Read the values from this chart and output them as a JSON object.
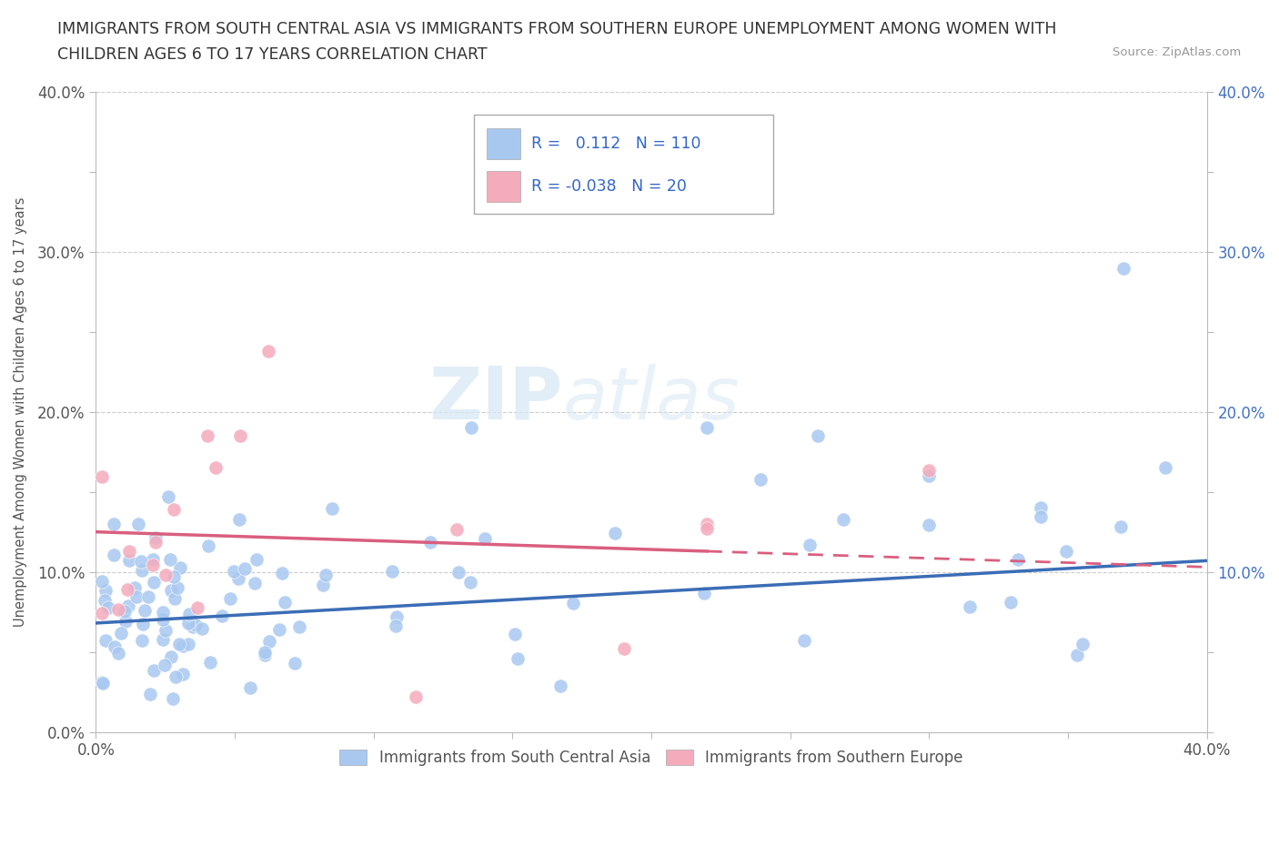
{
  "title_line1": "IMMIGRANTS FROM SOUTH CENTRAL ASIA VS IMMIGRANTS FROM SOUTHERN EUROPE UNEMPLOYMENT AMONG WOMEN WITH",
  "title_line2": "CHILDREN AGES 6 TO 17 YEARS CORRELATION CHART",
  "source_text": "Source: ZipAtlas.com",
  "ylabel": "Unemployment Among Women with Children Ages 6 to 17 years",
  "xlim": [
    0.0,
    0.4
  ],
  "ylim": [
    0.0,
    0.4
  ],
  "blue_color": "#A8C8F0",
  "pink_color": "#F4ABBC",
  "blue_line_color": "#3B6DB5",
  "pink_line_color": "#D95F7F",
  "watermark_zip": "ZIP",
  "watermark_atlas": "atlas",
  "legend_R_blue": "0.112",
  "legend_N_blue": "110",
  "legend_R_pink": "-0.038",
  "legend_N_pink": "20",
  "legend_label_blue": "Immigrants from South Central Asia",
  "legend_label_pink": "Immigrants from Southern Europe",
  "blue_trend_y_start": 0.068,
  "blue_trend_y_end": 0.107,
  "pink_trend_y_start": 0.125,
  "pink_trend_y_end": 0.103
}
